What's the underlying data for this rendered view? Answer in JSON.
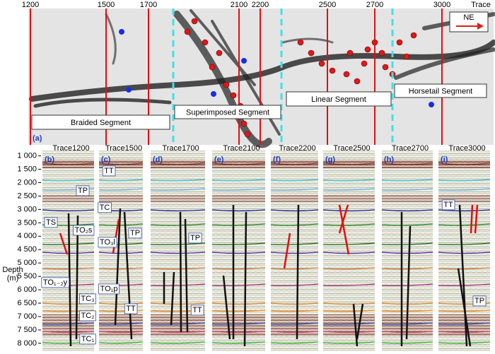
{
  "map_panel": {
    "label": "(a)",
    "trace_title": "Trace",
    "traces": [
      "1200",
      "1500",
      "1700",
      "2100",
      "2200",
      "2500",
      "2700",
      "3000"
    ],
    "direction": "NE",
    "segments": [
      "Braided Segment",
      "Superimposed Segment",
      "Linear Segment",
      "Horsetail Segment"
    ]
  },
  "sections": {
    "depth_title": [
      "Depth",
      "(m)"
    ],
    "depth_ticks": [
      "1 000",
      "1 500",
      "2 000",
      "2 500",
      "3 000",
      "3 500",
      "4 000",
      "4 500",
      "5 000",
      "5 500",
      "6 000",
      "6 500",
      "7 000",
      "7 500",
      "8 000"
    ],
    "panels": [
      {
        "label": "(b)",
        "title": "Trace1200",
        "horizons": [
          "TP",
          "TS",
          "TO₂s",
          "TO₁₋₂y",
          "TC₃",
          "TC₂",
          "TC₁"
        ]
      },
      {
        "label": "(c)",
        "title": "Trace1500",
        "horizons": [
          "TT",
          "TC",
          "TP",
          "TO₃l",
          "TO₁p",
          "TT"
        ]
      },
      {
        "label": "(d)",
        "title": "Trace1700",
        "horizons": [
          "TP",
          "TT"
        ]
      },
      {
        "label": "(e)",
        "title": "Trace2100",
        "horizons": []
      },
      {
        "label": "(f)",
        "title": "Trace2200",
        "horizons": []
      },
      {
        "label": "(g)",
        "title": "Trace2500",
        "horizons": []
      },
      {
        "label": "(h)",
        "title": "Trace2700",
        "horizons": []
      },
      {
        "label": "(i)",
        "title": "Trace3000",
        "horizons": [
          "TT",
          "TP"
        ]
      }
    ]
  }
}
